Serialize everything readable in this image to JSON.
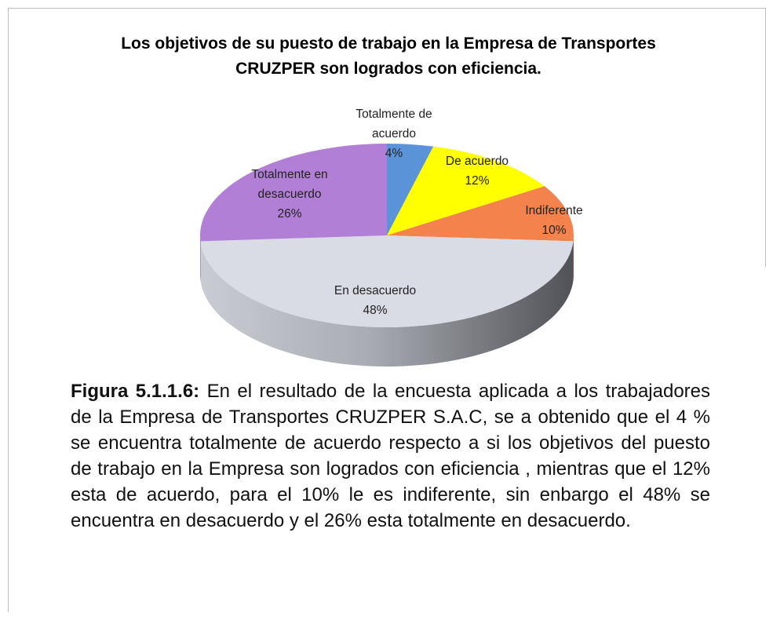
{
  "chart_data": {
    "type": "pie",
    "title": "Los objetivos de su puesto de trabajo en la Empresa de Transportes CRUZPER son logrados con eficiencia.",
    "categories": [
      "Totalmente de acuerdo",
      "De acuerdo",
      "Indiferente",
      "En desacuerdo",
      "Totalmente en desacuerdo"
    ],
    "values": [
      4,
      12,
      10,
      48,
      26
    ],
    "value_labels": [
      "4%",
      "12%",
      "10%",
      "48%",
      "26%"
    ],
    "colors": [
      "#5b93d8",
      "#ffff00",
      "#f4824c",
      "#d9dce4",
      "#b27fd6"
    ]
  },
  "caption": {
    "label": "Figura 5.1.1.6:",
    "text": "En el resultado de la encuesta aplicada a los trabajadores de la Empresa de Transportes CRUZPER S.A.C, se a obtenido que el 4 % se encuentra totalmente de acuerdo respecto a si los objetivos del puesto de trabajo en la Empresa son logrados con eficiencia , mientras que el 12% esta de acuerdo, para el 10% le es indiferente, sin enbargo el 48% se encuentra en desacuerdo y el 26% esta totalmente en desacuerdo."
  }
}
